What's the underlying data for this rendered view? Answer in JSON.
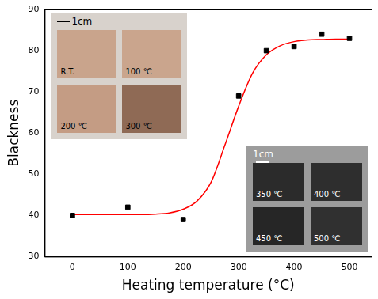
{
  "chart_data": {
    "type": "scatter",
    "x_label": "Heating temperature (°C)",
    "y_label": "Blackness",
    "series": [
      {
        "type": "scatter",
        "marker": "square",
        "color": "#000000",
        "x": [
          0,
          100,
          200,
          300,
          350,
          400,
          450,
          500
        ],
        "values": [
          40,
          42,
          39,
          69,
          80,
          81,
          84,
          83
        ]
      },
      {
        "type": "line",
        "line_style": "solid",
        "color": "#ff0000",
        "x": [
          0,
          25,
          50,
          75,
          100,
          125,
          150,
          175,
          200,
          225,
          250,
          275,
          300,
          325,
          350,
          375,
          400,
          425,
          450,
          475,
          500
        ],
        "values": [
          40.2,
          40.2,
          40.2,
          40.2,
          40.2,
          40.2,
          40.3,
          40.6,
          41.5,
          43.5,
          48,
          57,
          66.5,
          74.5,
          79,
          81.2,
          82.2,
          82.6,
          82.7,
          82.8,
          82.8
        ]
      }
    ],
    "xlim": [
      -50,
      540
    ],
    "xticks": [
      0,
      100,
      200,
      300,
      400,
      500
    ],
    "ylim": [
      30,
      90
    ],
    "yticks": [
      30,
      40,
      50,
      60,
      70,
      80,
      90
    ],
    "grid": false,
    "annotations": [
      [
        "1cm",
        "R.T.",
        "100 ℃",
        "200 ℃",
        "300 ℃"
      ],
      [
        "1cm",
        "350 ℃",
        "400 ℃",
        "450 ℃",
        "500 ℃"
      ]
    ]
  }
}
